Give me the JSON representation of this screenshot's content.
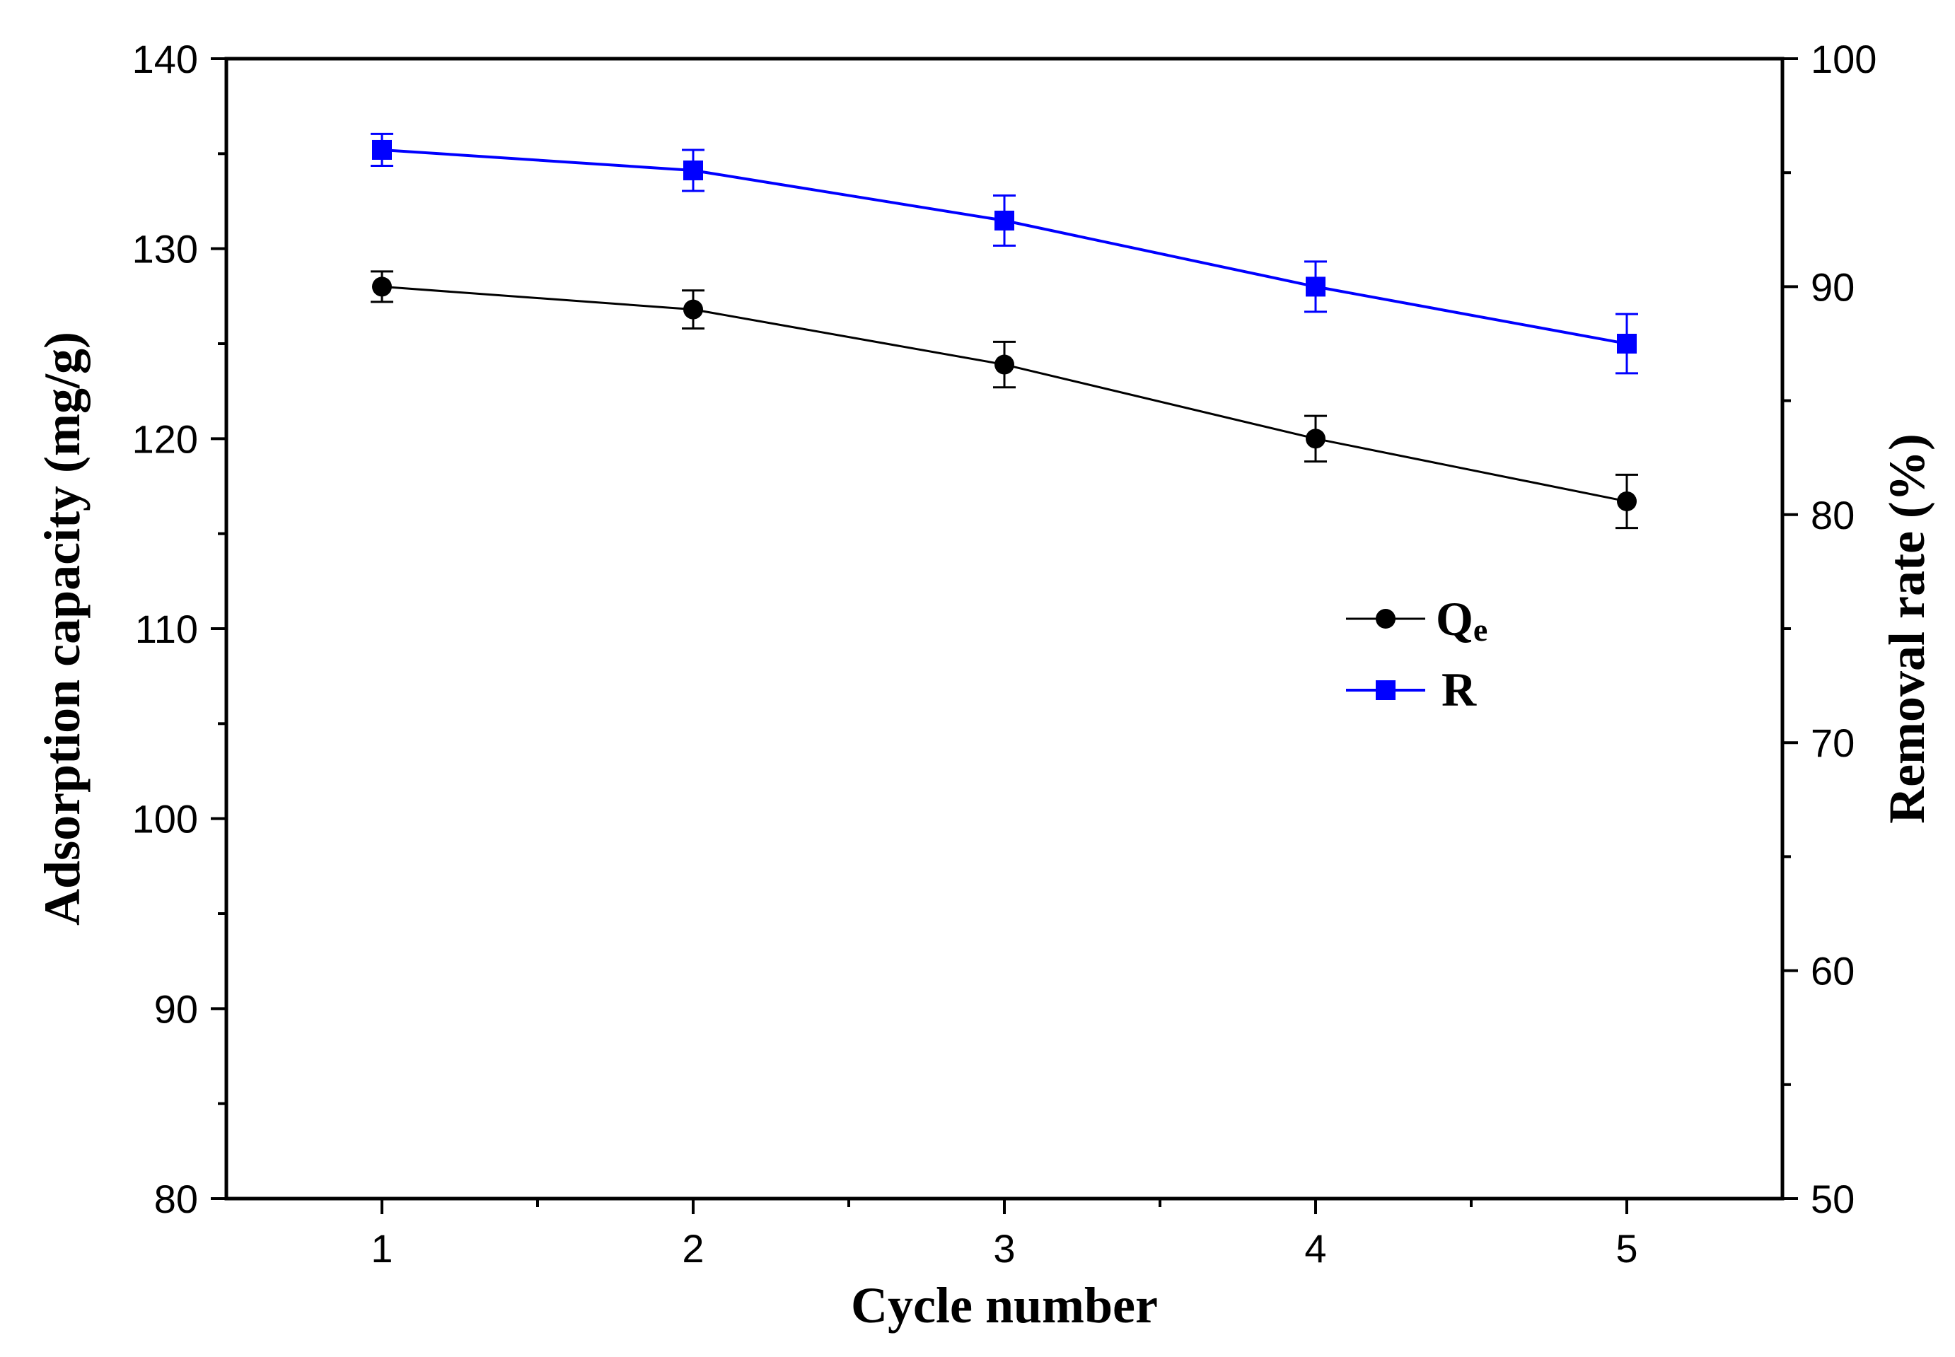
{
  "chart_data": {
    "type": "line",
    "x": [
      1,
      2,
      3,
      4,
      5
    ],
    "xlabel": "Cycle number",
    "xlim": [
      0.5,
      5.5
    ],
    "x_ticks": [
      "1",
      "2",
      "3",
      "4",
      "5"
    ],
    "ylabel_left": "Adsorption capacity (mg/g)",
    "ylim_left": [
      80,
      140
    ],
    "y_ticks_left": [
      "80",
      "90",
      "100",
      "110",
      "120",
      "130",
      "140"
    ],
    "ylabel_right": "Removal rate (%)",
    "ylim_right": [
      50,
      100
    ],
    "y_ticks_right": [
      "50",
      "60",
      "70",
      "80",
      "90",
      "100"
    ],
    "grid": false,
    "legend_position": "center-right",
    "series": [
      {
        "name": "Q",
        "name_sub": "e",
        "axis": "left",
        "color": "#000000",
        "marker": "circle",
        "values": [
          128.0,
          126.8,
          123.9,
          120.0,
          116.7
        ],
        "errors": [
          0.8,
          1.0,
          1.2,
          1.2,
          1.4
        ]
      },
      {
        "name": "R",
        "axis": "right",
        "color": "#0000ff",
        "marker": "square",
        "values": [
          96.0,
          95.1,
          92.9,
          90.0,
          87.5
        ],
        "errors": [
          0.7,
          0.9,
          1.1,
          1.1,
          1.3
        ]
      }
    ]
  }
}
